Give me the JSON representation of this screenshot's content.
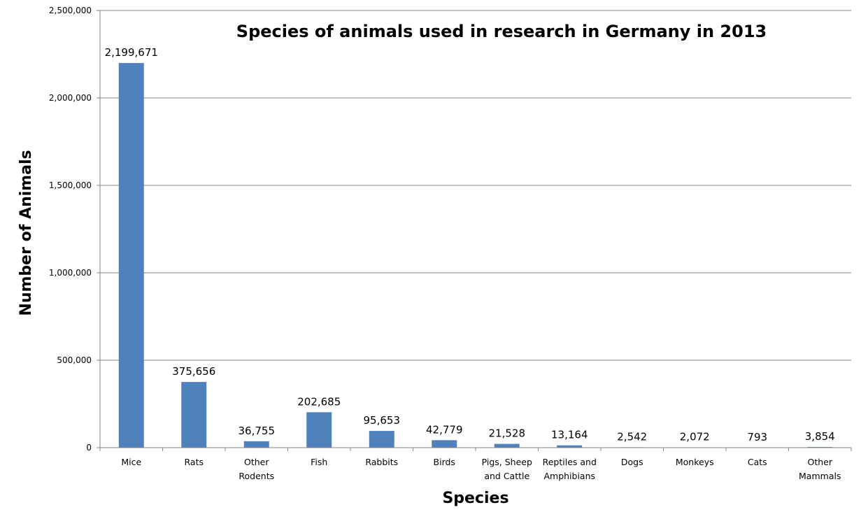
{
  "chart_data": {
    "type": "bar",
    "title": "Species of animals used in research in Germany in 2013",
    "xlabel": "Species",
    "ylabel": "Number of Animals",
    "categories": [
      [
        "Mice"
      ],
      [
        "Rats"
      ],
      [
        "Other",
        "Rodents"
      ],
      [
        "Fish"
      ],
      [
        "Rabbits"
      ],
      [
        "Birds"
      ],
      [
        "Pigs, Sheep",
        "and Cattle"
      ],
      [
        "Reptiles and",
        "Amphibians"
      ],
      [
        "Dogs"
      ],
      [
        "Monkeys"
      ],
      [
        "Cats"
      ],
      [
        "Other",
        "Mammals"
      ]
    ],
    "values": [
      2199671,
      375656,
      36755,
      202685,
      95653,
      42779,
      21528,
      13164,
      2542,
      2072,
      793,
      3854
    ],
    "data_labels": [
      "2,199,671",
      "375,656",
      "36,755",
      "202,685",
      "95,653",
      "42,779",
      "21,528",
      "13,164",
      "2,542",
      "2,072",
      "793",
      "3,854"
    ],
    "yticks": [
      0,
      500000,
      1000000,
      1500000,
      2000000,
      2500000
    ],
    "ytick_labels": [
      "0",
      "500,000",
      "1,000,000",
      "1,500,000",
      "2,000,000",
      "2,500,000"
    ],
    "ylim": [
      0,
      2500000
    ],
    "grid": true,
    "legend": "none",
    "bar_color": "#4f81bd",
    "grid_color": "#868686"
  }
}
